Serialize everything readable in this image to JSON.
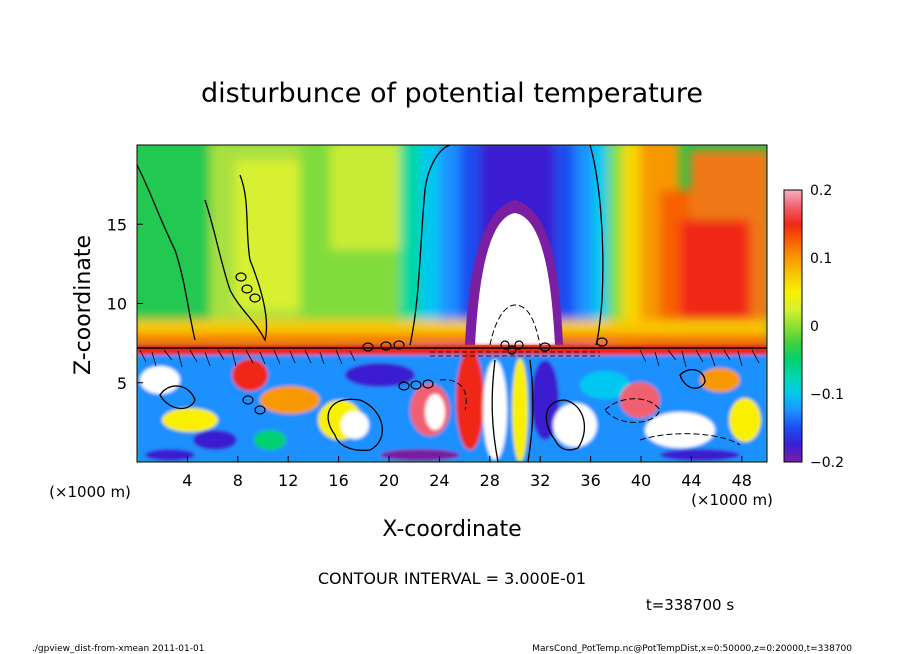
{
  "chart_data": {
    "type": "heatmap",
    "title": "disturbunce of potential temperature",
    "xlabel": "X-coordinate",
    "ylabel": "Z-coordinate",
    "x_unit": "(×1000 m)",
    "y_unit": "(×1000 m)",
    "xlim": [
      0,
      50
    ],
    "ylim": [
      0,
      20
    ],
    "x_ticks": [
      4,
      8,
      12,
      16,
      20,
      24,
      28,
      32,
      36,
      40,
      44,
      48
    ],
    "y_ticks": [
      5,
      10,
      15
    ],
    "colorbar": {
      "range": [
        -0.2,
        0.2
      ],
      "ticks": [
        {
          "value": 0.2,
          "label": "0.2"
        },
        {
          "value": 0.1,
          "label": "0.1"
        },
        {
          "value": 0,
          "label": "0"
        },
        {
          "value": -0.1,
          "label": "−0.1"
        },
        {
          "value": -0.2,
          "label": "−0.2"
        }
      ],
      "colors": [
        "#7a1fa2",
        "#3a1fd0",
        "#1e4cf0",
        "#1e90ff",
        "#00c8f0",
        "#00d8b0",
        "#00d070",
        "#40d040",
        "#90e030",
        "#d8f030",
        "#f8f000",
        "#f8c800",
        "#f89800",
        "#f86000",
        "#f02818",
        "#f06070",
        "#f8b0c0"
      ]
    },
    "contour_interval_text": "CONTOUR INTERVAL = 3.000E-01",
    "time_text": "t=338700 s"
  },
  "footer": {
    "left": "./gpview_dist-from-xmean  2011-01-01",
    "right": "MarsCond_PotTemp.nc@PotTempDist,x=0:50000,z=0:20000,t=338700"
  }
}
